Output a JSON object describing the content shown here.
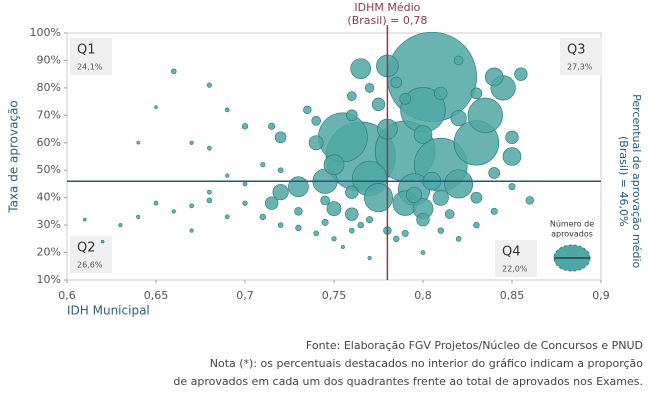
{
  "chart_data": {
    "type": "bubble",
    "y_label": "Taxa de aprovação",
    "x_label": "IDH Municipal",
    "xlim": [
      0.6,
      0.9
    ],
    "ylim": [
      10,
      100
    ],
    "xticks": [
      {
        "value": 0.6,
        "label": "0,6"
      },
      {
        "value": 0.65,
        "label": "0,65"
      },
      {
        "value": 0.7,
        "label": "0,7"
      },
      {
        "value": 0.75,
        "label": "0,75"
      },
      {
        "value": 0.8,
        "label": "0,8"
      },
      {
        "value": 0.85,
        "label": "0,85"
      },
      {
        "value": 0.9,
        "label": "0,9"
      }
    ],
    "yticks": [
      {
        "value": 10,
        "label": "10%"
      },
      {
        "value": 20,
        "label": "20%"
      },
      {
        "value": 30,
        "label": "30%"
      },
      {
        "value": 40,
        "label": "40%"
      },
      {
        "value": 50,
        "label": "50%"
      },
      {
        "value": 60,
        "label": "60%"
      },
      {
        "value": 70,
        "label": "70%"
      },
      {
        "value": 80,
        "label": "80%"
      },
      {
        "value": 90,
        "label": "90%"
      },
      {
        "value": 100,
        "label": "100%"
      }
    ],
    "vline": {
      "value": 0.78,
      "label": [
        "IDHM Médio",
        "(Brasil) = 0,78"
      ],
      "color": "#8b3a4a"
    },
    "hline": {
      "value": 46,
      "label": [
        "Percentual de aprovação médio",
        "(Brasil) = 46,0%"
      ],
      "color": "#1f5a7a"
    },
    "quadrants": [
      {
        "name": "Q1",
        "share": "24,1%"
      },
      {
        "name": "Q2",
        "share": "26,6%"
      },
      {
        "name": "Q3",
        "share": "27,3%"
      },
      {
        "name": "Q4",
        "share": "22,0%"
      }
    ],
    "size_legend": [
      "Número de",
      "aprovados"
    ],
    "series": [
      {
        "color": "#4fa7a5",
        "x": [
          0.805,
          0.765,
          0.79,
          0.755,
          0.81,
          0.83,
          0.8,
          0.77,
          0.795,
          0.82,
          0.765,
          0.78,
          0.835,
          0.845,
          0.84,
          0.79,
          0.8,
          0.775,
          0.745,
          0.73,
          0.72,
          0.715,
          0.75,
          0.76,
          0.8,
          0.81,
          0.85,
          0.85,
          0.855,
          0.86,
          0.74,
          0.74,
          0.72,
          0.735,
          0.715,
          0.76,
          0.775,
          0.785,
          0.77,
          0.82,
          0.83,
          0.81,
          0.8,
          0.82,
          0.76,
          0.745,
          0.73,
          0.71,
          0.72,
          0.73,
          0.74,
          0.75,
          0.76,
          0.77,
          0.78,
          0.785,
          0.79,
          0.81,
          0.82,
          0.83,
          0.84,
          0.84,
          0.85,
          0.7,
          0.69,
          0.68,
          0.68,
          0.67,
          0.66,
          0.65,
          0.64,
          0.63,
          0.62,
          0.61,
          0.67,
          0.66,
          0.68,
          0.69,
          0.7,
          0.68,
          0.67,
          0.65,
          0.64,
          0.69,
          0.7,
          0.71,
          0.72,
          0.755,
          0.77,
          0.8,
          0.745,
          0.765,
          0.795,
          0.815,
          0.83,
          0.805,
          0.75,
          0.78,
          0.76,
          0.79
        ],
        "y": [
          84,
          55,
          57,
          62,
          52,
          60,
          72,
          47,
          43,
          45,
          87,
          88,
          70,
          80,
          84,
          38,
          36,
          40,
          46,
          44,
          42,
          38,
          36,
          34,
          32,
          40,
          55,
          62,
          85,
          39,
          60,
          68,
          62,
          72,
          66,
          70,
          74,
          82,
          80,
          90,
          78,
          78,
          63,
          69,
          42,
          39,
          35,
          33,
          30,
          29,
          27,
          25,
          28,
          32,
          28,
          25,
          27,
          28,
          25,
          30,
          35,
          49,
          44,
          38,
          33,
          42,
          39,
          37,
          35,
          38,
          33,
          30,
          24,
          32,
          28,
          86,
          81,
          72,
          66,
          58,
          60,
          73,
          60,
          48,
          45,
          52,
          50,
          22,
          18,
          20,
          31,
          30,
          41,
          34,
          40,
          46,
          52,
          65,
          77,
          76
        ],
        "sizes": [
          2000,
          1200,
          900,
          600,
          700,
          500,
          500,
          300,
          250,
          200,
          100,
          120,
          300,
          150,
          80,
          150,
          100,
          200,
          150,
          100,
          60,
          40,
          50,
          40,
          40,
          60,
          80,
          40,
          40,
          15,
          50,
          20,
          30,
          15,
          10,
          30,
          40,
          30,
          20,
          20,
          30,
          40,
          80,
          60,
          40,
          20,
          15,
          8,
          6,
          8,
          6,
          5,
          6,
          10,
          15,
          8,
          10,
          8,
          6,
          8,
          10,
          30,
          10,
          5,
          4,
          4,
          6,
          4,
          3,
          4,
          3,
          3,
          2,
          2,
          3,
          6,
          5,
          4,
          8,
          4,
          3,
          2,
          2,
          3,
          4,
          5,
          6,
          3,
          3,
          4,
          10,
          8,
          60,
          20,
          30,
          80,
          100,
          100,
          20,
          30
        ]
      }
    ],
    "notes": [
      "Fonte: Elaboração FGV Projetos/Núcleo de Concursos e PNUD",
      "Nota (*): os percentuais destacados no interior do gráfico indicam a proporção",
      "de aprovados em cada um dos quadrantes frente ao total de aprovados nos Exames."
    ]
  }
}
